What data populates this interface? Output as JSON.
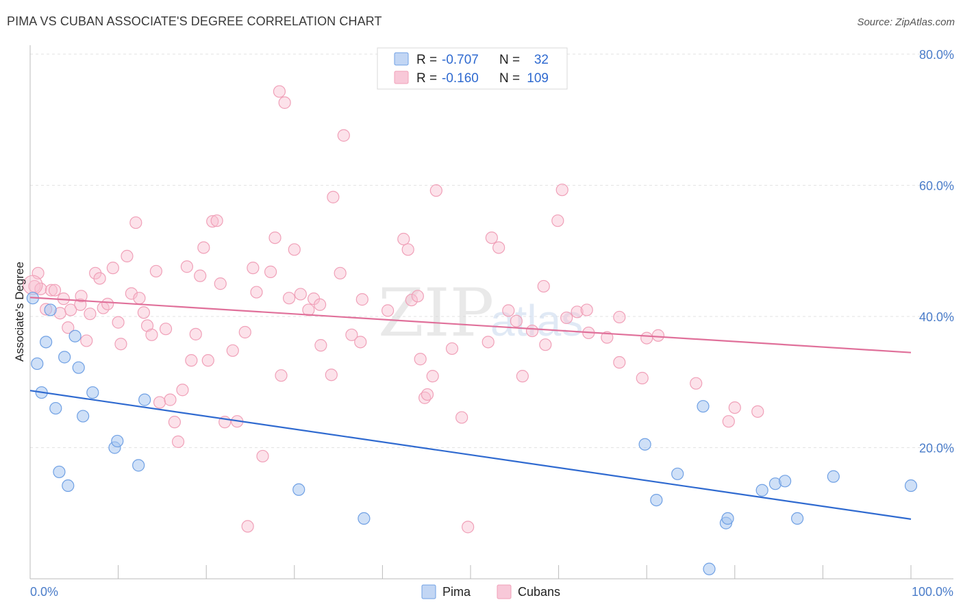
{
  "title": "PIMA VS CUBAN ASSOCIATE'S DEGREE CORRELATION CHART",
  "source": "Source: ZipAtlas.com",
  "watermark": {
    "main": "ZIP",
    "sub": "atlas"
  },
  "legend": {
    "row1": {
      "r_label": "R =",
      "r_value": "-0.707",
      "n_label": "N =",
      "n_value": "32"
    },
    "row2": {
      "r_label": "R =",
      "r_value": "-0.160",
      "n_label": "N =",
      "n_value": "109"
    }
  },
  "chart_data": {
    "type": "scatter",
    "xlabel": "",
    "ylabel": "Associate's Degree",
    "xlim": [
      0,
      100
    ],
    "ylim": [
      0,
      80
    ],
    "x_tick_labels": {
      "min": "0.0%",
      "max": "100.0%"
    },
    "y_ticks": [
      {
        "value": 20,
        "label": "20.0%"
      },
      {
        "value": 40,
        "label": "40.0%"
      },
      {
        "value": 60,
        "label": "60.0%"
      },
      {
        "value": 80,
        "label": "80.0%"
      }
    ],
    "grid": true,
    "legend_position": "bottom-center",
    "colors": {
      "pima": "#6fa0e4",
      "cubans": "#f0a0b8",
      "pima_line": "#2f6ad0",
      "cubans_line": "#e0709a"
    },
    "series": [
      {
        "name": "Pima",
        "r": -0.707,
        "n": 32,
        "trend": {
          "x": [
            0,
            100
          ],
          "y": [
            28.7,
            9.1
          ]
        },
        "points": [
          [
            0.3,
            42.8
          ],
          [
            0.8,
            32.8
          ],
          [
            1.3,
            28.4
          ],
          [
            1.8,
            36.1
          ],
          [
            2.3,
            41.0
          ],
          [
            2.9,
            26.0
          ],
          [
            3.3,
            16.3
          ],
          [
            3.9,
            33.8
          ],
          [
            4.3,
            14.2
          ],
          [
            5.1,
            37.0
          ],
          [
            5.5,
            32.2
          ],
          [
            6.0,
            24.8
          ],
          [
            7.1,
            28.4
          ],
          [
            9.6,
            20.0
          ],
          [
            9.9,
            21.0
          ],
          [
            12.3,
            17.3
          ],
          [
            13.0,
            27.3
          ],
          [
            30.5,
            13.6
          ],
          [
            37.9,
            9.2
          ],
          [
            69.8,
            20.5
          ],
          [
            71.1,
            12.0
          ],
          [
            73.5,
            16.0
          ],
          [
            76.4,
            26.3
          ],
          [
            77.1,
            1.5
          ],
          [
            79.0,
            8.5
          ],
          [
            79.2,
            9.2
          ],
          [
            83.1,
            13.5
          ],
          [
            84.6,
            14.5
          ],
          [
            85.7,
            14.9
          ],
          [
            87.1,
            9.2
          ],
          [
            91.2,
            15.6
          ],
          [
            100.0,
            14.2
          ]
        ]
      },
      {
        "name": "Cubans",
        "r": -0.16,
        "n": 109,
        "trend": {
          "x": [
            0,
            100
          ],
          "y": [
            42.9,
            34.5
          ]
        },
        "points": [
          [
            0.5,
            44.6
          ],
          [
            0.9,
            46.6
          ],
          [
            1.2,
            44.2
          ],
          [
            1.8,
            41.1
          ],
          [
            2.4,
            44.0
          ],
          [
            2.8,
            44.0
          ],
          [
            3.4,
            40.5
          ],
          [
            3.8,
            42.7
          ],
          [
            4.3,
            38.3
          ],
          [
            4.6,
            41.0
          ],
          [
            5.7,
            41.8
          ],
          [
            5.8,
            43.1
          ],
          [
            6.4,
            36.3
          ],
          [
            6.8,
            40.4
          ],
          [
            7.4,
            46.6
          ],
          [
            7.9,
            45.8
          ],
          [
            8.3,
            41.3
          ],
          [
            8.8,
            41.9
          ],
          [
            9.4,
            47.4
          ],
          [
            10.0,
            39.1
          ],
          [
            10.3,
            35.8
          ],
          [
            11.0,
            49.2
          ],
          [
            11.5,
            43.5
          ],
          [
            12.0,
            54.3
          ],
          [
            12.4,
            42.8
          ],
          [
            12.9,
            40.6
          ],
          [
            13.3,
            38.6
          ],
          [
            13.8,
            37.2
          ],
          [
            14.3,
            46.9
          ],
          [
            14.7,
            26.9
          ],
          [
            15.4,
            38.1
          ],
          [
            15.9,
            27.3
          ],
          [
            16.4,
            23.9
          ],
          [
            16.8,
            20.9
          ],
          [
            17.3,
            28.8
          ],
          [
            17.8,
            47.6
          ],
          [
            18.3,
            33.3
          ],
          [
            18.8,
            37.3
          ],
          [
            19.3,
            46.2
          ],
          [
            19.7,
            50.5
          ],
          [
            20.2,
            33.3
          ],
          [
            20.7,
            54.5
          ],
          [
            21.2,
            54.6
          ],
          [
            21.6,
            45.0
          ],
          [
            22.1,
            23.9
          ],
          [
            23.0,
            34.8
          ],
          [
            23.5,
            24.0
          ],
          [
            24.4,
            37.6
          ],
          [
            24.7,
            8.0
          ],
          [
            25.3,
            47.4
          ],
          [
            25.7,
            43.7
          ],
          [
            26.4,
            18.7
          ],
          [
            27.3,
            46.8
          ],
          [
            27.8,
            52.0
          ],
          [
            28.3,
            74.3
          ],
          [
            28.5,
            31.0
          ],
          [
            28.9,
            72.6
          ],
          [
            29.4,
            42.8
          ],
          [
            30.0,
            50.2
          ],
          [
            30.7,
            43.4
          ],
          [
            31.6,
            41.0
          ],
          [
            32.2,
            42.7
          ],
          [
            32.9,
            41.8
          ],
          [
            33.0,
            35.6
          ],
          [
            34.2,
            31.1
          ],
          [
            34.4,
            58.2
          ],
          [
            35.2,
            46.6
          ],
          [
            35.6,
            67.6
          ],
          [
            36.5,
            37.2
          ],
          [
            37.5,
            36.1
          ],
          [
            37.7,
            42.6
          ],
          [
            40.6,
            40.9
          ],
          [
            42.4,
            51.8
          ],
          [
            42.9,
            50.2
          ],
          [
            43.3,
            42.5
          ],
          [
            44.0,
            43.1
          ],
          [
            44.3,
            33.5
          ],
          [
            44.8,
            27.6
          ],
          [
            45.1,
            28.1
          ],
          [
            45.7,
            30.9
          ],
          [
            46.1,
            59.2
          ],
          [
            47.9,
            35.1
          ],
          [
            49.0,
            24.6
          ],
          [
            49.7,
            7.9
          ],
          [
            52.0,
            36.1
          ],
          [
            52.4,
            52.0
          ],
          [
            53.2,
            50.5
          ],
          [
            54.3,
            40.9
          ],
          [
            55.2,
            39.3
          ],
          [
            55.9,
            30.9
          ],
          [
            57.0,
            37.8
          ],
          [
            58.3,
            44.6
          ],
          [
            58.5,
            35.7
          ],
          [
            59.9,
            54.6
          ],
          [
            60.4,
            59.3
          ],
          [
            60.9,
            39.8
          ],
          [
            62.1,
            40.7
          ],
          [
            63.2,
            41.0
          ],
          [
            63.4,
            37.5
          ],
          [
            65.5,
            36.8
          ],
          [
            66.9,
            39.9
          ],
          [
            66.9,
            33.0
          ],
          [
            69.5,
            30.6
          ],
          [
            70.0,
            36.7
          ],
          [
            71.3,
            37.1
          ],
          [
            75.6,
            29.8
          ],
          [
            79.3,
            24.0
          ],
          [
            80.0,
            26.1
          ],
          [
            82.6,
            25.5
          ]
        ]
      }
    ]
  }
}
